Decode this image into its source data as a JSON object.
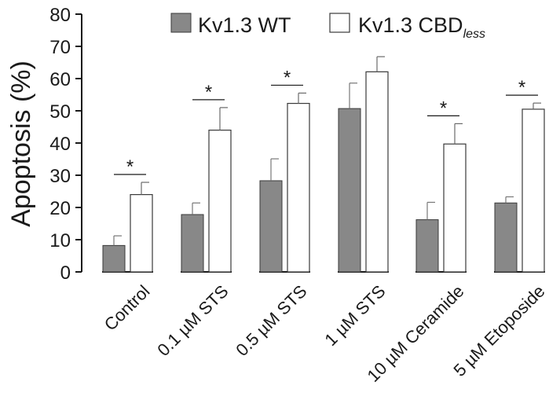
{
  "chart_data": {
    "type": "bar",
    "title": "",
    "xlabel": "",
    "ylabel": "Apoptosis (%)",
    "ylim": [
      0,
      80
    ],
    "yticks": [
      0,
      10,
      20,
      30,
      40,
      50,
      60,
      70,
      80
    ],
    "categories": [
      "Control",
      "0.1 µM STS",
      "0.5 µM STS",
      "1 µM STS",
      "10 µM  Ceramide",
      "5 µM  Etoposide"
    ],
    "series": [
      {
        "name": "Kv1.3 WT",
        "fill": "#888888",
        "values": [
          8.2,
          17.8,
          28.3,
          50.7,
          16.2,
          21.4
        ],
        "errors": [
          3.0,
          3.6,
          6.8,
          7.9,
          5.4,
          1.9
        ]
      },
      {
        "name": "Kv1.3 CBD",
        "subscript": "less",
        "fill": "#ffffff",
        "values": [
          24.0,
          44.0,
          52.3,
          62.1,
          39.7,
          50.5
        ],
        "errors": [
          3.8,
          7.0,
          3.2,
          4.7,
          6.3,
          1.9
        ]
      }
    ],
    "significance": [
      true,
      true,
      true,
      false,
      true,
      true
    ],
    "significance_marker": "*",
    "legend_position": "top"
  },
  "colors": {
    "axis": "#1a1a1a",
    "wt_fill": "#888888",
    "cbd_fill": "#ffffff",
    "bar_stroke": "#3a3a3a"
  }
}
